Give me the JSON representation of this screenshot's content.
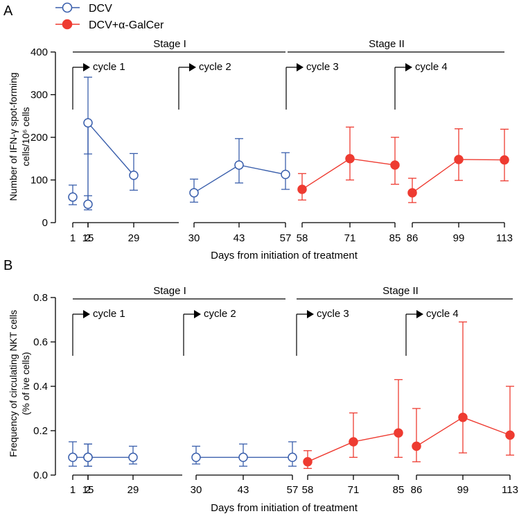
{
  "legend": [
    {
      "label": "DCV",
      "style": "open",
      "color": "#3a5fac"
    },
    {
      "label": "DCV+α-GalCer",
      "style": "filled",
      "color": "#ee3b31"
    }
  ],
  "chart_data": [
    {
      "type": "line",
      "panel_label": "A",
      "ylabel_line1": "Number of IFN-γ spot-forming",
      "ylabel_line2": "cells/10⁶ cells",
      "xlabel": "Days from initiation of treatment",
      "ylim": [
        0,
        400
      ],
      "yticks": [
        "0",
        "100",
        "200",
        "300",
        "400"
      ],
      "stages": [
        "Stage I",
        "Stage II"
      ],
      "cycles": [
        "cycle 1",
        "cycle 2",
        "cycle 3",
        "cycle 4"
      ],
      "segments": [
        {
          "ticks": [
            "1",
            "2"
          ]
        },
        {
          "ticks": [
            "15",
            "29"
          ]
        },
        {
          "ticks": [
            "30",
            "43",
            "57"
          ]
        },
        {
          "ticks": [
            "58",
            "71",
            "85"
          ]
        },
        {
          "ticks": [
            "86",
            "99",
            "113"
          ]
        }
      ],
      "series": [
        {
          "name": "DCV",
          "style": "open",
          "color": "#3a5fac",
          "groups": [
            [
              {
                "x": "1",
                "y": 60,
                "lo": 42,
                "hi": 88
              }
            ],
            [
              {
                "x": "2",
                "y": 43,
                "lo": 30,
                "hi": 63
              },
              {
                "x": "15",
                "y": 234,
                "lo": 161,
                "hi": 341
              },
              {
                "x": "29",
                "y": 111,
                "lo": 76,
                "hi": 162
              }
            ],
            [
              {
                "x": "30",
                "y": 70,
                "lo": 48,
                "hi": 102
              },
              {
                "x": "43",
                "y": 135,
                "lo": 93,
                "hi": 197
              },
              {
                "x": "57",
                "y": 113,
                "lo": 78,
                "hi": 164
              }
            ]
          ]
        },
        {
          "name": "DCV+α-GalCer",
          "style": "filled",
          "color": "#ee3b31",
          "groups": [
            [
              {
                "x": "58",
                "y": 78,
                "lo": 53,
                "hi": 115
              },
              {
                "x": "71",
                "y": 150,
                "lo": 100,
                "hi": 224
              },
              {
                "x": "85",
                "y": 135,
                "lo": 90,
                "hi": 200
              }
            ],
            [
              {
                "x": "86",
                "y": 70,
                "lo": 47,
                "hi": 104
              },
              {
                "x": "99",
                "y": 148,
                "lo": 99,
                "hi": 220
              },
              {
                "x": "113",
                "y": 147,
                "lo": 98,
                "hi": 219
              }
            ]
          ]
        }
      ]
    },
    {
      "type": "line",
      "panel_label": "B",
      "ylabel_line1": "Frequency of  circulating NKT cells",
      "ylabel_line2": "(% of ive cells)",
      "xlabel": "Days from initiation of treatment",
      "ylim": [
        0,
        0.8
      ],
      "yticks": [
        "0.0",
        "0.2",
        "0.4",
        "0.6",
        "0.8"
      ],
      "stages": [
        "Stage I",
        "Stage II"
      ],
      "cycles": [
        "cycle 1",
        "cycle 2",
        "cycle 3",
        "cycle 4"
      ],
      "segments": [
        {
          "ticks": [
            "1",
            "2"
          ]
        },
        {
          "ticks": [
            "15",
            "29"
          ]
        },
        {
          "ticks": [
            "30",
            "43",
            "57"
          ]
        },
        {
          "ticks": [
            "58",
            "71",
            "85"
          ]
        },
        {
          "ticks": [
            "86",
            "99",
            "113"
          ]
        }
      ],
      "series": [
        {
          "name": "DCV",
          "style": "open",
          "color": "#3a5fac",
          "groups": [
            [
              {
                "x": "1",
                "y": 0.08,
                "lo": 0.04,
                "hi": 0.15
              },
              {
                "x": "2",
                "y": 0.08,
                "lo": 0.04,
                "hi": 0.14
              },
              {
                "x": "15",
                "y": 0.08,
                "lo": 0.04,
                "hi": 0.14
              },
              {
                "x": "29",
                "y": 0.08,
                "lo": 0.05,
                "hi": 0.13
              }
            ],
            [
              {
                "x": "30",
                "y": 0.08,
                "lo": 0.05,
                "hi": 0.13
              },
              {
                "x": "43",
                "y": 0.08,
                "lo": 0.04,
                "hi": 0.14
              },
              {
                "x": "57",
                "y": 0.08,
                "lo": 0.04,
                "hi": 0.15
              }
            ]
          ]
        },
        {
          "name": "DCV+α-GalCer",
          "style": "filled",
          "color": "#ee3b31",
          "groups": [
            [
              {
                "x": "58",
                "y": 0.06,
                "lo": 0.03,
                "hi": 0.11
              },
              {
                "x": "71",
                "y": 0.15,
                "lo": 0.08,
                "hi": 0.28
              },
              {
                "x": "85",
                "y": 0.19,
                "lo": 0.08,
                "hi": 0.43
              }
            ],
            [
              {
                "x": "86",
                "y": 0.13,
                "lo": 0.06,
                "hi": 0.3
              },
              {
                "x": "99",
                "y": 0.26,
                "lo": 0.1,
                "hi": 0.69
              },
              {
                "x": "113",
                "y": 0.18,
                "lo": 0.09,
                "hi": 0.4
              }
            ]
          ]
        }
      ]
    }
  ]
}
